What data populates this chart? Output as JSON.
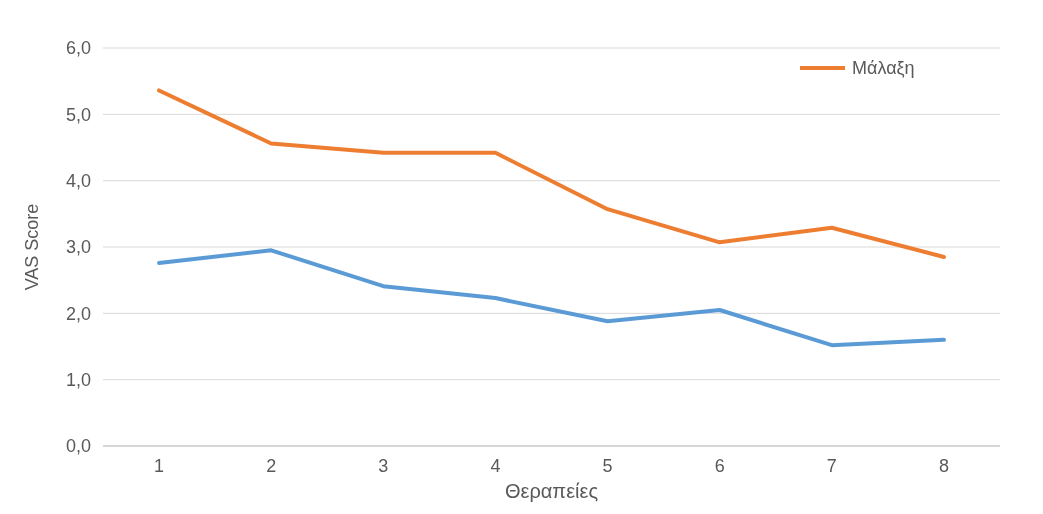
{
  "chart_data": {
    "type": "line",
    "xlabel": "Θεραπείες",
    "ylabel": "VAS Score",
    "categories": [
      "1",
      "2",
      "3",
      "4",
      "5",
      "6",
      "7",
      "8"
    ],
    "series": [
      {
        "color": "#5b9bd5",
        "values": [
          2.76,
          2.95,
          2.41,
          2.23,
          1.88,
          2.05,
          1.52,
          1.6
        ]
      },
      {
        "name": "Μάλαξη",
        "color": "#ed7d31",
        "values": [
          5.36,
          4.56,
          4.42,
          4.42,
          3.57,
          3.07,
          3.29,
          2.85
        ]
      }
    ],
    "ylim": [
      0,
      6
    ],
    "yticks": [
      {
        "value": 0,
        "label": "0,0"
      },
      {
        "value": 1,
        "label": "1,0"
      },
      {
        "value": 2,
        "label": "2,0"
      },
      {
        "value": 3,
        "label": "3,0"
      },
      {
        "value": 4,
        "label": "4,0"
      },
      {
        "value": 5,
        "label": "5,0"
      },
      {
        "value": 6,
        "label": "6,0"
      }
    ],
    "grid": "y",
    "legend": "top right",
    "marker": "none",
    "line_style": "solid"
  }
}
